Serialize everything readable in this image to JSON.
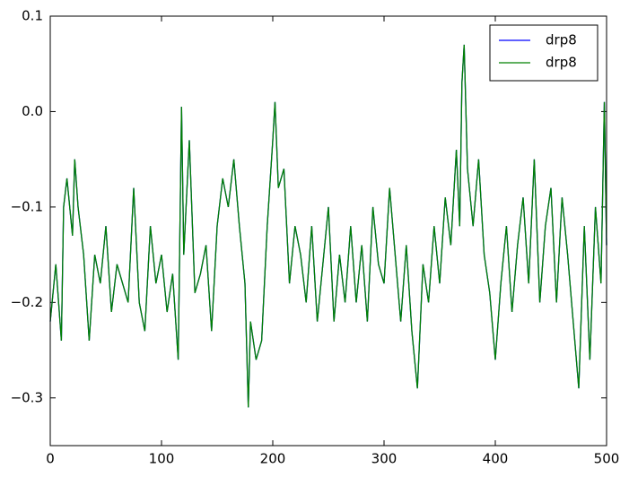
{
  "chart_data": {
    "type": "line",
    "x": [
      0,
      5,
      10,
      12,
      15,
      20,
      22,
      25,
      30,
      35,
      40,
      45,
      50,
      55,
      60,
      65,
      70,
      75,
      80,
      85,
      90,
      95,
      100,
      105,
      110,
      115,
      118,
      120,
      125,
      130,
      135,
      140,
      145,
      150,
      155,
      160,
      165,
      170,
      175,
      178,
      180,
      185,
      190,
      195,
      200,
      202,
      205,
      210,
      215,
      220,
      225,
      230,
      235,
      240,
      245,
      250,
      255,
      260,
      265,
      270,
      275,
      280,
      285,
      290,
      295,
      300,
      305,
      310,
      315,
      320,
      325,
      330,
      335,
      340,
      345,
      350,
      355,
      360,
      365,
      368,
      370,
      372,
      375,
      380,
      385,
      390,
      395,
      400,
      405,
      410,
      415,
      420,
      425,
      430,
      435,
      440,
      445,
      450,
      455,
      460,
      465,
      470,
      475,
      480,
      485,
      490,
      495,
      498,
      500
    ],
    "series": [
      {
        "name": "drp8",
        "color": "#0000ff",
        "values": [
          -0.22,
          -0.16,
          -0.24,
          -0.1,
          -0.07,
          -0.13,
          -0.05,
          -0.1,
          -0.15,
          -0.24,
          -0.15,
          -0.18,
          -0.12,
          -0.21,
          -0.16,
          -0.18,
          -0.2,
          -0.08,
          -0.2,
          -0.23,
          -0.12,
          -0.18,
          -0.15,
          -0.21,
          -0.17,
          -0.26,
          0.005,
          -0.15,
          -0.03,
          -0.19,
          -0.17,
          -0.14,
          -0.23,
          -0.12,
          -0.07,
          -0.1,
          -0.05,
          -0.12,
          -0.18,
          -0.31,
          -0.22,
          -0.26,
          -0.24,
          -0.12,
          -0.03,
          0.01,
          -0.08,
          -0.06,
          -0.18,
          -0.12,
          -0.15,
          -0.2,
          -0.12,
          -0.22,
          -0.16,
          -0.1,
          -0.22,
          -0.15,
          -0.2,
          -0.12,
          -0.2,
          -0.14,
          -0.22,
          -0.1,
          -0.16,
          -0.18,
          -0.08,
          -0.15,
          -0.22,
          -0.14,
          -0.23,
          -0.29,
          -0.16,
          -0.2,
          -0.12,
          -0.18,
          -0.09,
          -0.14,
          -0.04,
          -0.12,
          0.03,
          0.07,
          -0.06,
          -0.12,
          -0.05,
          -0.15,
          -0.19,
          -0.26,
          -0.18,
          -0.12,
          -0.21,
          -0.14,
          -0.09,
          -0.18,
          -0.05,
          -0.2,
          -0.12,
          -0.08,
          -0.2,
          -0.09,
          -0.15,
          -0.22,
          -0.29,
          -0.12,
          -0.26,
          -0.1,
          -0.18,
          0.01,
          -0.14
        ]
      },
      {
        "name": "drp8",
        "color": "#008000",
        "values": [
          -0.22,
          -0.16,
          -0.24,
          -0.1,
          -0.07,
          -0.13,
          -0.05,
          -0.1,
          -0.15,
          -0.24,
          -0.15,
          -0.18,
          -0.12,
          -0.21,
          -0.16,
          -0.18,
          -0.2,
          -0.08,
          -0.2,
          -0.23,
          -0.12,
          -0.18,
          -0.15,
          -0.21,
          -0.17,
          -0.26,
          0.005,
          -0.15,
          -0.03,
          -0.19,
          -0.17,
          -0.14,
          -0.23,
          -0.12,
          -0.07,
          -0.1,
          -0.05,
          -0.12,
          -0.18,
          -0.31,
          -0.22,
          -0.26,
          -0.24,
          -0.12,
          -0.03,
          0.01,
          -0.08,
          -0.06,
          -0.18,
          -0.12,
          -0.15,
          -0.2,
          -0.12,
          -0.22,
          -0.16,
          -0.1,
          -0.22,
          -0.15,
          -0.2,
          -0.12,
          -0.2,
          -0.14,
          -0.22,
          -0.1,
          -0.16,
          -0.18,
          -0.08,
          -0.15,
          -0.22,
          -0.14,
          -0.23,
          -0.29,
          -0.16,
          -0.2,
          -0.12,
          -0.18,
          -0.09,
          -0.14,
          -0.04,
          -0.12,
          0.03,
          0.07,
          -0.06,
          -0.12,
          -0.05,
          -0.15,
          -0.19,
          -0.26,
          -0.18,
          -0.12,
          -0.21,
          -0.14,
          -0.09,
          -0.18,
          -0.05,
          -0.2,
          -0.12,
          -0.08,
          -0.2,
          -0.09,
          -0.15,
          -0.22,
          -0.29,
          -0.12,
          -0.26,
          -0.1,
          -0.18,
          0.01,
          -0.14
        ]
      }
    ],
    "xlim": [
      0,
      500
    ],
    "xticks": [
      0,
      100,
      200,
      300,
      400,
      500
    ],
    "ylim": [
      -0.35,
      0.1
    ],
    "yticks": [
      {
        "value": -0.3,
        "label": "−0.3"
      },
      {
        "value": -0.2,
        "label": "−0.2"
      },
      {
        "value": -0.1,
        "label": "−0.1"
      },
      {
        "value": 0,
        "label": "0.0"
      },
      {
        "value": 0.1,
        "label": "0.1"
      }
    ],
    "grid": false,
    "legend": "upper right"
  }
}
